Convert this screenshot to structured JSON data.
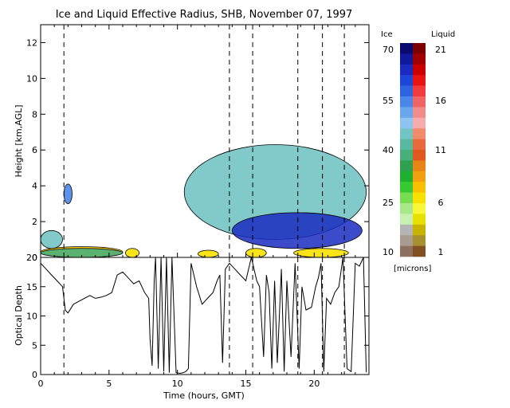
{
  "title": "Ice and Liquid Effective Radius, SHB, November 07, 1997",
  "chart_data": [
    {
      "type": "heatmap",
      "panel": "effective-radius",
      "ylabel": "Height [km,AGL]",
      "xlim": [
        0,
        24
      ],
      "ylim": [
        0,
        13
      ],
      "xticks": [
        0,
        5,
        10,
        15,
        20
      ],
      "yticks": [
        0,
        2,
        4,
        6,
        8,
        10,
        12
      ],
      "dashed_times": [
        1.7,
        13.8,
        15.5,
        18.8,
        20.6,
        22.2
      ],
      "regions": [
        {
          "phase": "liquid",
          "x": [
            0.0,
            6.0
          ],
          "y": [
            0.0,
            0.6
          ],
          "value_microns": 7
        },
        {
          "phase": "ice",
          "x": [
            0.0,
            6.0
          ],
          "y": [
            0.0,
            0.5
          ],
          "value_microns": 40
        },
        {
          "phase": "liquid",
          "x": [
            6.2,
            7.2
          ],
          "y": [
            0.0,
            0.5
          ],
          "value_microns": 6
        },
        {
          "phase": "liquid",
          "x": [
            11.5,
            13.0
          ],
          "y": [
            0.0,
            0.4
          ],
          "value_microns": 6
        },
        {
          "phase": "liquid",
          "x": [
            15.0,
            16.5
          ],
          "y": [
            0.0,
            0.5
          ],
          "value_microns": 6
        },
        {
          "phase": "liquid",
          "x": [
            18.5,
            22.5
          ],
          "y": [
            0.0,
            0.5
          ],
          "value_microns": 6
        },
        {
          "phase": "ice",
          "x": [
            10.5,
            23.8
          ],
          "y": [
            1.0,
            6.3
          ],
          "value_microns": 45
        },
        {
          "phase": "ice",
          "x": [
            14.0,
            23.5
          ],
          "y": [
            0.5,
            2.5
          ],
          "value_microns": 65
        },
        {
          "phase": "ice",
          "x": [
            1.7,
            2.3
          ],
          "y": [
            3.0,
            4.1
          ],
          "value_microns": 55
        },
        {
          "phase": "ice",
          "x": [
            0.0,
            1.6
          ],
          "y": [
            0.5,
            1.5
          ],
          "value_microns": 45
        }
      ],
      "colorbar": {
        "ice_label": "Ice",
        "liquid_label": "Liquid",
        "units": "[microns]",
        "ice_ticks": [
          "70",
          "55",
          "40",
          "25",
          "10"
        ],
        "liquid_ticks": [
          "21",
          "16",
          "11",
          "6",
          "1"
        ],
        "ice_colors": [
          "#0a0a6e",
          "#10189c",
          "#1a2cc0",
          "#1e46d8",
          "#2e64e0",
          "#4c86e8",
          "#6aa6ec",
          "#8ec4f0",
          "#74c4c4",
          "#5ab8a0",
          "#48ae7a",
          "#2ea050",
          "#20b030",
          "#38c830",
          "#78dc50",
          "#a8e888",
          "#c8f0b0",
          "#b4b4b4",
          "#a89c90",
          "#8c7060"
        ],
        "liquid_colors": [
          "#7a0000",
          "#a00000",
          "#c80000",
          "#e81414",
          "#f03c3c",
          "#f06464",
          "#f08c8c",
          "#f4acac",
          "#f08c6c",
          "#e86a3c",
          "#e05820",
          "#e88418",
          "#f0a010",
          "#f8c000",
          "#f8e000",
          "#f8f838",
          "#e8e000",
          "#c8b400",
          "#a89030",
          "#805020"
        ]
      }
    },
    {
      "type": "line",
      "panel": "optical-depth",
      "xlabel": "Time (hours, GMT)",
      "ylabel": "Optical Depth",
      "xlim": [
        0,
        24
      ],
      "ylim": [
        0,
        20
      ],
      "xticks": [
        0,
        5,
        10,
        15,
        20
      ],
      "yticks": [
        0,
        5,
        10,
        15,
        20
      ],
      "dashed_times": [
        1.7,
        13.8,
        15.5,
        18.8,
        20.6,
        22.2
      ],
      "series": [
        {
          "x": [
            0.0,
            0.4,
            0.8,
            1.2,
            1.6,
            1.8,
            2.0,
            2.4,
            2.8,
            3.2,
            3.6,
            4.0,
            4.4,
            4.8,
            5.2,
            5.6,
            6.0,
            6.4,
            6.8,
            7.2,
            7.6,
            7.9,
            8.0,
            8.15,
            8.3,
            8.4,
            8.6,
            8.8,
            9.0,
            9.2,
            9.4,
            9.6,
            9.9,
            10.2,
            10.4,
            10.6,
            10.8,
            11.0,
            11.4,
            11.8,
            12.2,
            12.6,
            12.9,
            13.1,
            13.3,
            13.5,
            13.8,
            14.2,
            14.6,
            15.0,
            15.4,
            15.8,
            16.0,
            16.3,
            16.5,
            16.7,
            16.9,
            17.1,
            17.3,
            17.6,
            17.8,
            18.0,
            18.3,
            18.6,
            18.9,
            19.1,
            19.4,
            19.8,
            20.1,
            20.3,
            20.5,
            20.7,
            20.9,
            21.2,
            21.5,
            21.8,
            22.1,
            22.4,
            22.7,
            23.0,
            23.3,
            23.6,
            23.8
          ],
          "y": [
            19,
            18,
            17,
            16,
            15,
            11,
            10.5,
            12,
            12.5,
            13,
            13.5,
            13,
            13.2,
            13.5,
            14,
            17,
            17.5,
            16.5,
            15.5,
            16,
            14,
            13,
            6,
            1.5,
            16,
            20,
            1,
            20,
            0.5,
            20,
            0.3,
            20,
            0.3,
            0.2,
            0.3,
            0.5,
            1,
            19,
            15,
            12,
            13,
            14,
            16,
            17,
            2,
            18,
            19,
            18,
            17,
            16,
            20,
            16,
            15,
            3,
            17,
            14,
            1,
            16,
            2,
            18,
            0.5,
            16,
            3,
            19,
            1,
            15,
            11,
            11.5,
            15,
            16.5,
            19,
            0.5,
            13,
            12,
            14,
            15,
            20,
            1,
            0.5,
            19,
            18.5,
            20,
            0.4
          ]
        }
      ]
    }
  ]
}
